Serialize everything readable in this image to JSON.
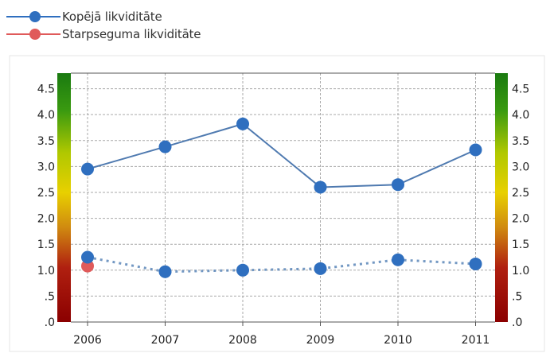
{
  "chart_data": {
    "type": "line",
    "categories": [
      "2006",
      "2007",
      "2008",
      "2009",
      "2010",
      "2011"
    ],
    "series": [
      {
        "name": "Kopējā likviditāte",
        "color": "#4f7ab0",
        "marker": "#2f6fbf",
        "line_style": "solid",
        "values": [
          2.95,
          3.38,
          3.82,
          2.6,
          2.65,
          3.32
        ]
      },
      {
        "name": "Starpseguma likviditāte",
        "color": "#e05a5a",
        "marker": "#e05a5a",
        "line_style": "none",
        "values": [
          1.08,
          null,
          null,
          null,
          null,
          null
        ]
      },
      {
        "name": "",
        "color": "#5b86b8",
        "marker": "#2f6fbf",
        "line_style": "dotted",
        "values": [
          1.25,
          0.97,
          1.0,
          1.03,
          1.2,
          1.12
        ]
      }
    ],
    "yticks": [
      "4.5",
      "4.0",
      "3.5",
      "3.0",
      "2.5",
      "2.0",
      "1.5",
      "1.0",
      ".5",
      ".0"
    ],
    "ylim": [
      0,
      4.8
    ],
    "grid": true,
    "legend_position": "top-left",
    "side_bars": "red-yellow-green gradient scale on left and right axes"
  }
}
